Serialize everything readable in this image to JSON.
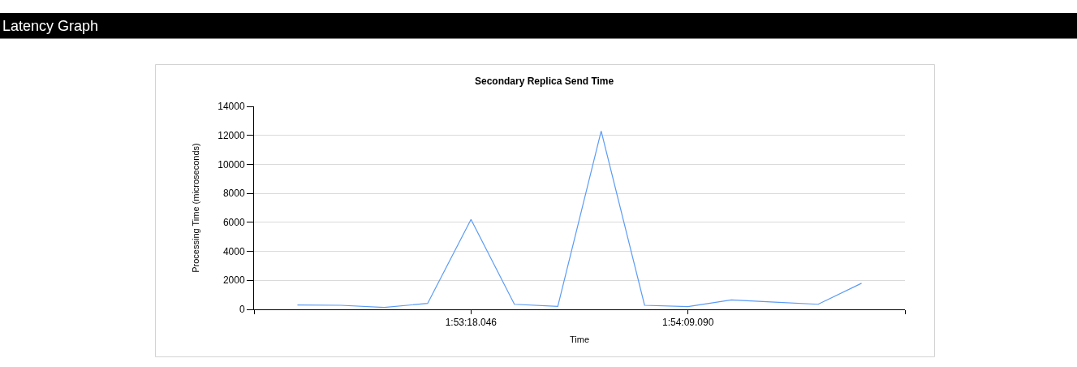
{
  "chart_data": {
    "type": "line",
    "title": "Latency Graph",
    "subtitle": "Secondary Replica Send Time",
    "xlabel": "Time",
    "ylabel": "Processing Time (microseconds)",
    "categories": [
      null,
      null,
      null,
      null,
      "1:53:18.046",
      null,
      null,
      null,
      null,
      "1:54:09.090",
      null,
      null,
      null,
      null
    ],
    "series": [
      {
        "color": "#5b9bf5",
        "values": [
          300,
          280,
          130,
          410,
          6200,
          350,
          200,
          12300,
          280,
          190,
          650,
          500,
          350,
          1800
        ]
      }
    ],
    "ylim": [
      0,
      14000
    ],
    "yticks": [
      0,
      2000,
      4000,
      6000,
      8000,
      10000,
      12000,
      14000
    ],
    "grid": "y",
    "marker": "none",
    "line_style": "solid"
  }
}
